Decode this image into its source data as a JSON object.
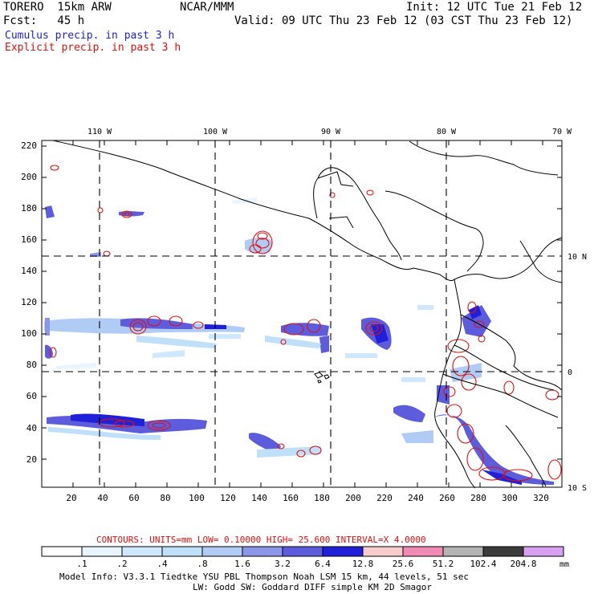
{
  "header": {
    "model": "TORERO  15km ARW",
    "org": "NCAR/MMM",
    "init": "Init: 12 UTC Tue 21 Feb 12",
    "fcst": "Fcst:   45 h",
    "valid": "Valid: 09 UTC Thu 23 Feb 12 (03 CST Thu 23 Feb 12)",
    "cumulus": "Cumulus precip. in past 3 h",
    "explicit": "Explicit precip. in past 3 h"
  },
  "colors": {
    "cumulus_text": "#2323c8",
    "explicit_text": "#e01010",
    "contour": "#e01010",
    "coast": "#000000"
  },
  "map": {
    "top_lon_labels": [
      "110 W",
      "100 W",
      "90 W",
      "80 W",
      "70 W"
    ],
    "right_lat_labels": [
      "10 N",
      "0",
      "10 S"
    ],
    "y_ticks": [
      "20",
      "40",
      "60",
      "80",
      "100",
      "120",
      "140",
      "160",
      "180",
      "200",
      "220"
    ],
    "x_ticks": [
      "20",
      "40",
      "60",
      "80",
      "100",
      "120",
      "140",
      "160",
      "180",
      "200",
      "220",
      "240",
      "260",
      "280",
      "300",
      "320"
    ]
  },
  "footer": {
    "contours_label": "CONTOURS:  UNITS=mm  LOW= 0.10000      HIGH=  25.600      INTERVAL=X  4.0000",
    "colorbar_labels": [
      ".1",
      ".2",
      ".4",
      ".8",
      "1.6",
      "3.2",
      "6.4",
      "12.8",
      "25.6",
      "51.2",
      "102.4",
      "204.8"
    ],
    "units": "mm",
    "colorbar_colors": [
      "#ffffff",
      "#e8f4ff",
      "#d0e8ff",
      "#bfe0f8",
      "#b0ccf4",
      "#8c96e8",
      "#5c5cdc",
      "#2020d8",
      "#f8cccc",
      "#f08cb4",
      "#b4b4b4",
      "#3c3c3c",
      "#d8a0f0"
    ],
    "info_line1": "Model Info: V3.3.1    Tiedtke YSU PBL  Thompson     Noah LSM  15 km,    44 levels,    51 sec",
    "info_line2": "LW: Godd SW: Goddard DIFF  simple KM  2D Smagor"
  }
}
